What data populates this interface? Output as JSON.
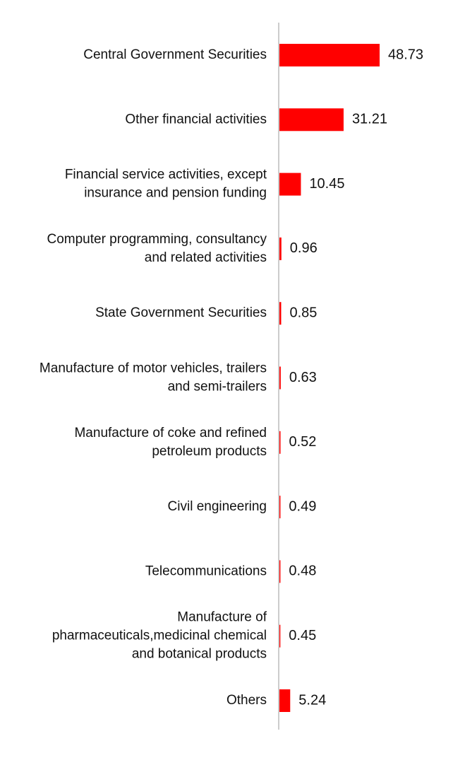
{
  "chart_data": {
    "type": "bar",
    "orientation": "horizontal",
    "title": "",
    "xlabel": "",
    "ylabel": "",
    "categories": [
      [
        "Central Government Securities"
      ],
      [
        "Other financial activities"
      ],
      [
        "Financial service activities, except",
        "insurance and pension funding"
      ],
      [
        "Computer programming, consultancy",
        "and related activities"
      ],
      [
        "State Government Securities"
      ],
      [
        "Manufacture of motor vehicles, trailers",
        "and semi-trailers"
      ],
      [
        "Manufacture of coke and refined",
        "petroleum products"
      ],
      [
        "Civil engineering"
      ],
      [
        "Telecommunications"
      ],
      [
        "Manufacture of",
        "pharmaceuticals,medicinal chemical",
        "and botanical products"
      ],
      [
        "Others"
      ]
    ],
    "values": [
      48.73,
      31.21,
      10.45,
      0.96,
      0.85,
      0.63,
      0.52,
      0.49,
      0.48,
      0.45,
      5.24
    ],
    "value_labels": [
      "48.73",
      "31.21",
      "10.45",
      "0.96",
      "0.85",
      "0.63",
      "0.52",
      "0.49",
      "0.48",
      "0.45",
      "5.24"
    ],
    "xlim": [
      0,
      48.73
    ],
    "grid": false,
    "legend": "none",
    "bar_color": "#ff0000",
    "axis_color": "#cccccc"
  }
}
